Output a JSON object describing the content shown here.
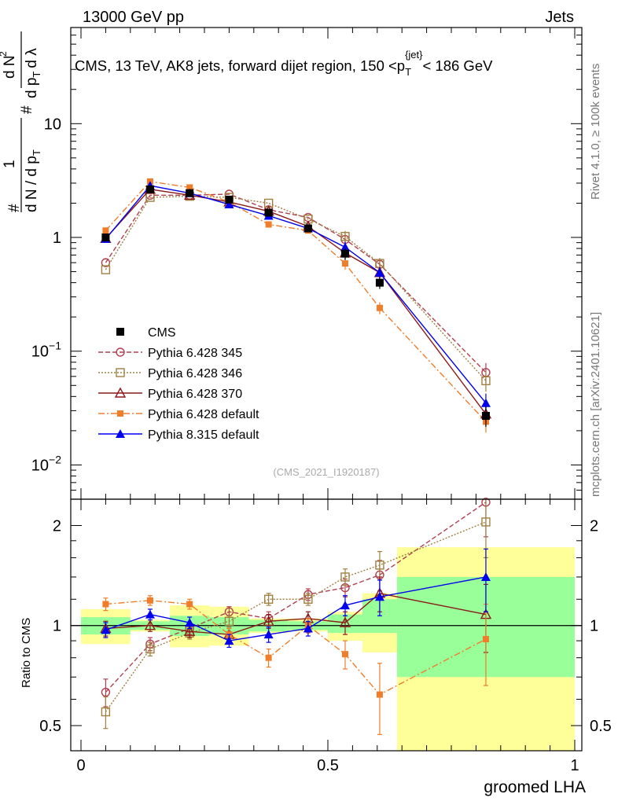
{
  "header": {
    "left": "13000 GeV pp",
    "right": "Jets"
  },
  "side_labels": {
    "rivet": "Rivet 4.1.0, ≥ 100k events",
    "mcplots": "mcplots.cern.ch [arXiv:2401.10621]"
  },
  "colors": {
    "cms": "#000000",
    "p345": "#b04050",
    "p346": "#a08040",
    "p370": "#8b1a1a",
    "pdef": "#f07d2a",
    "p8": "#0000ee",
    "band_inner": "#99ff99",
    "band_outer": "#ffff99"
  },
  "chart_data": [
    {
      "type": "line",
      "title": "CMS, 13 TeV, AK8 jets, forward dijet region, 150 <p_T^{jet}< 186 GeV",
      "title_parts": {
        "pre": "CMS, 13 TeV, AK8 jets, forward dijet region, 150 <p",
        "sub": "T",
        "sup": "{jet}",
        "post": "< 186 GeV"
      },
      "ylabel_parts": {
        "hash": "#",
        "one": "1",
        "denom": "d N / d p",
        "denom_sub": "T",
        "hash2": "#",
        "num2": "d N",
        "num2_sup": "2",
        "den2": "d p",
        "den2_sub": "T",
        "den2_tail": "d λ"
      },
      "xlabel": "groomed LHA",
      "yscale": "log",
      "ylim": [
        0.005,
        70
      ],
      "xlim": [
        0,
        1
      ],
      "y_ticks": [
        {
          "value": 0.01,
          "label": "10",
          "sup": "−2"
        },
        {
          "value": 0.1,
          "label": "10",
          "sup": "−1"
        },
        {
          "value": 1,
          "label": "1",
          "sup": ""
        },
        {
          "value": 10,
          "label": "10",
          "sup": ""
        }
      ],
      "x": [
        0.05,
        0.14,
        0.22,
        0.3,
        0.38,
        0.46,
        0.535,
        0.605,
        0.82
      ],
      "series": [
        {
          "name": "CMS",
          "values": [
            1.0,
            2.65,
            2.45,
            2.15,
            1.65,
            1.2,
            0.72,
            0.4,
            0.027
          ],
          "marker": "square-filled",
          "dash": "none"
        },
        {
          "name": "Pythia 6.428 345",
          "values": [
            0.6,
            2.35,
            2.35,
            2.4,
            1.75,
            1.5,
            0.96,
            0.58,
            0.065
          ],
          "marker": "circle-open",
          "dash": "6,3"
        },
        {
          "name": "Pythia 6.428 346",
          "values": [
            0.52,
            2.25,
            2.3,
            2.25,
            2.0,
            1.45,
            1.02,
            0.59,
            0.055
          ],
          "marker": "square-open",
          "dash": "2,2"
        },
        {
          "name": "Pythia 6.428 370",
          "values": [
            0.98,
            2.65,
            2.35,
            2.05,
            1.7,
            1.25,
            0.73,
            0.49,
            0.028
          ],
          "marker": "triangle-open",
          "dash": "none"
        },
        {
          "name": "Pythia 6.428 default",
          "values": [
            1.15,
            3.1,
            2.75,
            2.05,
            1.3,
            1.15,
            0.59,
            0.24,
            0.024
          ],
          "marker": "square-small-filled",
          "dash": "8,3,2,3"
        },
        {
          "name": "Pythia 8.315 default",
          "values": [
            0.97,
            2.85,
            2.45,
            1.95,
            1.55,
            1.2,
            0.82,
            0.49,
            0.035
          ],
          "marker": "triangle-filled",
          "dash": "none"
        }
      ],
      "legend": "center-left",
      "watermark": "(CMS_2021_I1920187)"
    },
    {
      "type": "line",
      "ylabel": "Ratio to CMS",
      "xlabel": "groomed LHA",
      "yscale": "log",
      "ylim": [
        0.42,
        2.4
      ],
      "xlim": [
        0,
        1
      ],
      "y_ticks": [
        {
          "value": 0.5,
          "label": "0.5"
        },
        {
          "value": 1,
          "label": "1"
        },
        {
          "value": 2,
          "label": "2"
        }
      ],
      "x_ticks": [
        {
          "value": 0,
          "label": "0"
        },
        {
          "value": 0.5,
          "label": "0.5"
        },
        {
          "value": 1,
          "label": "1"
        }
      ],
      "bands": [
        {
          "x0": 0.0,
          "x1": 0.1,
          "inner": [
            0.94,
            1.06
          ],
          "outer": [
            0.88,
            1.12
          ]
        },
        {
          "x0": 0.1,
          "x1": 0.18,
          "inner": [
            0.97,
            1.03
          ],
          "outer": [
            0.96,
            1.04
          ]
        },
        {
          "x0": 0.18,
          "x1": 0.26,
          "inner": [
            0.93,
            1.07
          ],
          "outer": [
            0.86,
            1.15
          ]
        },
        {
          "x0": 0.26,
          "x1": 0.34,
          "inner": [
            0.94,
            1.06
          ],
          "outer": [
            0.87,
            1.14
          ]
        },
        {
          "x0": 0.34,
          "x1": 0.42,
          "inner": [
            0.96,
            1.04
          ],
          "outer": [
            0.95,
            1.05
          ]
        },
        {
          "x0": 0.42,
          "x1": 0.5,
          "inner": [
            0.97,
            1.03
          ],
          "outer": [
            0.96,
            1.05
          ]
        },
        {
          "x0": 0.5,
          "x1": 0.57,
          "inner": [
            0.95,
            1.08
          ],
          "outer": [
            0.9,
            1.1
          ]
        },
        {
          "x0": 0.57,
          "x1": 0.64,
          "inner": [
            0.95,
            1.2
          ],
          "outer": [
            0.83,
            1.25
          ]
        },
        {
          "x0": 0.64,
          "x1": 1.0,
          "inner": [
            0.7,
            1.4
          ],
          "outer": [
            0.42,
            1.72
          ]
        }
      ],
      "series": [
        {
          "name": "Pythia 6.428 345",
          "values": [
            0.63,
            0.88,
            0.98,
            1.1,
            1.05,
            1.24,
            1.3,
            1.42,
            2.35
          ],
          "errors": [
            0.06,
            0.04,
            0.04,
            0.04,
            0.05,
            0.05,
            0.08,
            0.15,
            0.5
          ]
        },
        {
          "name": "Pythia 6.428 346",
          "values": [
            0.55,
            0.85,
            0.95,
            1.03,
            1.2,
            1.2,
            1.4,
            1.52,
            2.05
          ],
          "errors": [
            0.06,
            0.04,
            0.04,
            0.04,
            0.05,
            0.05,
            0.08,
            0.15,
            0.45
          ]
        },
        {
          "name": "Pythia 6.428 370",
          "values": [
            0.98,
            1.0,
            0.96,
            0.94,
            1.03,
            1.05,
            1.02,
            1.25,
            1.08
          ],
          "errors": [
            0.05,
            0.04,
            0.04,
            0.04,
            0.05,
            0.05,
            0.08,
            0.15,
            0.25
          ]
        },
        {
          "name": "Pythia 6.428 default",
          "values": [
            1.16,
            1.19,
            1.16,
            0.94,
            0.8,
            1.0,
            0.82,
            0.62,
            0.91
          ],
          "errors": [
            0.05,
            0.04,
            0.04,
            0.04,
            0.05,
            0.05,
            0.08,
            0.15,
            0.25
          ]
        },
        {
          "name": "Pythia 8.315 default",
          "values": [
            0.97,
            1.08,
            1.02,
            0.9,
            0.94,
            0.98,
            1.15,
            1.22,
            1.4
          ],
          "errors": [
            0.05,
            0.04,
            0.04,
            0.04,
            0.05,
            0.05,
            0.08,
            0.15,
            0.3
          ]
        }
      ]
    }
  ]
}
